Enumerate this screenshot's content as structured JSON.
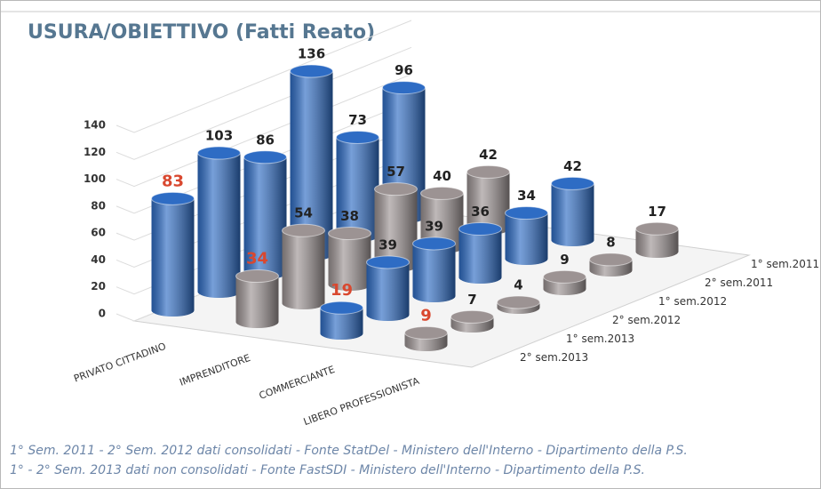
{
  "chart_data": {
    "type": "bar3d",
    "title": "USURA/OBIETTIVO (Fatti Reato)",
    "categories": [
      "1° sem.2011",
      "2° sem.2011",
      "1° sem.2012",
      "2° sem.2012",
      "1° sem.2013",
      "2° sem.2013"
    ],
    "series": [
      {
        "name": "PRIVATO CITTADINO",
        "color": "#2e6cc4",
        "values": [
          96,
          73,
          136,
          86,
          103,
          83
        ]
      },
      {
        "name": "IMPRENDITORE",
        "color": "#9c9393",
        "values": [
          42,
          40,
          57,
          38,
          54,
          34
        ]
      },
      {
        "name": "COMMERCIANTE",
        "color": "#2e6cc4",
        "values": [
          42,
          34,
          36,
          39,
          39,
          19
        ]
      },
      {
        "name": "LIBERO PROFESSIONISTA",
        "color": "#9c9393",
        "values": [
          17,
          8,
          9,
          4,
          7,
          9
        ]
      }
    ],
    "highlight_color": "#d9482f",
    "ylim": [
      0,
      140
    ],
    "yticks": [
      0,
      20,
      40,
      60,
      80,
      100,
      120,
      140
    ],
    "grid": true,
    "notes": [
      "1° Sem. 2011 - 2° Sem. 2012 dati consolidati - Fonte StatDel - Ministero dell'Interno - Dipartimento della P.S.",
      "1° - 2° Sem. 2013 dati non consolidati - Fonte FastSDI - Ministero dell'Interno - Dipartimento della P.S."
    ]
  }
}
